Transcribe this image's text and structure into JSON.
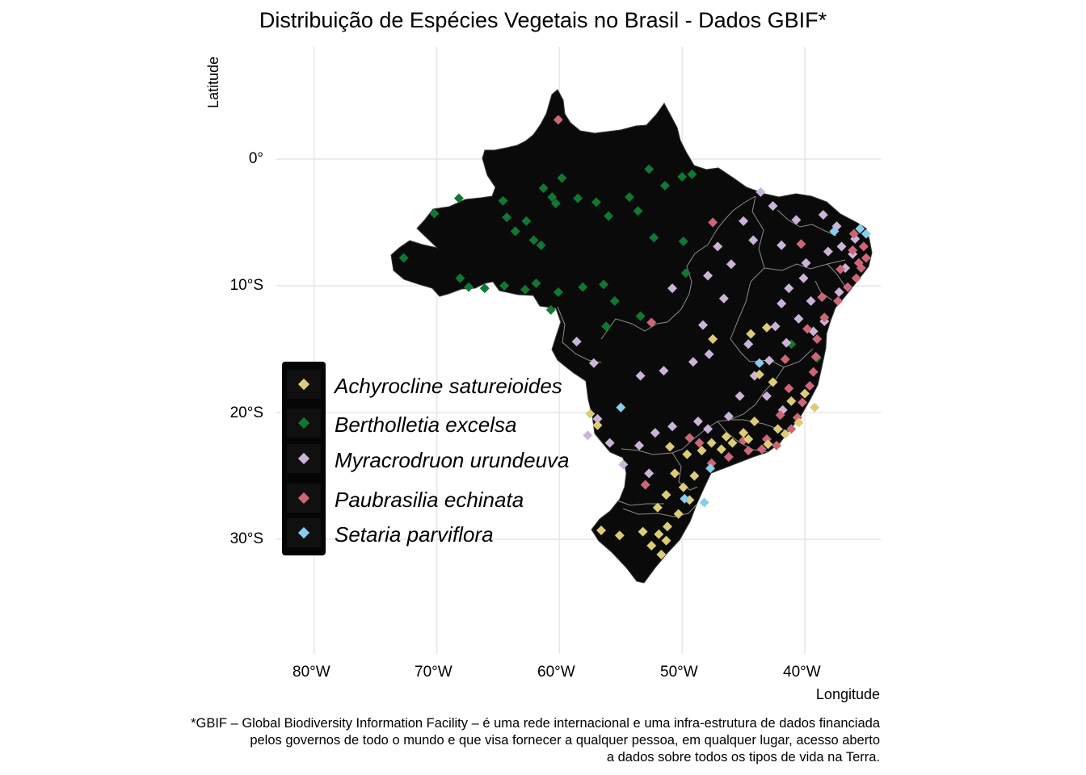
{
  "title": "Distribuição de Espécies Vegetais no Brasil - Dados GBIF*",
  "axes": {
    "x_label": "Longitude",
    "y_label": "Latitude",
    "lon_ticks": [
      "80°W",
      "70°W",
      "60°W",
      "50°W",
      "40°W"
    ],
    "lat_ticks": [
      "0°",
      "10°S",
      "20°S",
      "30°S"
    ],
    "lon_range": [
      -83,
      -33
    ],
    "lat_range": [
      -39,
      9
    ],
    "grid": true
  },
  "map": {
    "country_fill": "#0a0a0a",
    "state_border": "#8c8c8c"
  },
  "legend": {
    "placement": "left-center",
    "items": [
      {
        "label": "Achyrocline satureioides",
        "color": "#ddcc77"
      },
      {
        "label": "Bertholletia excelsa",
        "color": "#117733"
      },
      {
        "label": "Myracrodruon urundeuva",
        "color": "#cbb4d8"
      },
      {
        "label": "Paubrasilia echinata",
        "color": "#cc6677"
      },
      {
        "label": "Setaria parviflora",
        "color": "#88ccee"
      }
    ]
  },
  "caption": [
    "*GBIF – Global Biodiversity Information Facility – é uma rede internacional e uma infra-estrutura de dados financiada",
    "pelos governos de todo o mundo e que visa fornecer a qualquer pessoa, em qualquer lugar, acesso aberto",
    "a dados sobre todos os tipos de vida na Terra."
  ],
  "chart_data": {
    "type": "scatter",
    "title": "Distribuição de Espécies Vegetais no Brasil - Dados GBIF*",
    "xlabel": "Longitude",
    "ylabel": "Latitude",
    "xlim": [
      -83,
      -33
    ],
    "ylim": [
      -39,
      9
    ],
    "series": [
      {
        "name": "Bertholletia excelsa",
        "color": "#117733",
        "points": [
          [
            -70.2,
            -4.3
          ],
          [
            -68.2,
            -3.1
          ],
          [
            -72.7,
            -7.8
          ],
          [
            -68.1,
            -9.4
          ],
          [
            -67.4,
            -10.1
          ],
          [
            -66.1,
            -10.2
          ],
          [
            -64.5,
            -10.0
          ],
          [
            -62.8,
            -10.3
          ],
          [
            -61.9,
            -9.8
          ],
          [
            -60.1,
            -10.5
          ],
          [
            -58.1,
            -10.1
          ],
          [
            -56.4,
            -9.9
          ],
          [
            -55.5,
            -11.2
          ],
          [
            -64.6,
            -3.3
          ],
          [
            -64.3,
            -4.6
          ],
          [
            -63.6,
            -5.7
          ],
          [
            -62.1,
            -6.4
          ],
          [
            -61.5,
            -6.8
          ],
          [
            -62.7,
            -4.9
          ],
          [
            -61.3,
            -2.3
          ],
          [
            -60.6,
            -3.0
          ],
          [
            -60.3,
            -3.5
          ],
          [
            -59.8,
            -1.5
          ],
          [
            -58.5,
            -3.1
          ],
          [
            -57.0,
            -3.4
          ],
          [
            -56.0,
            -4.5
          ],
          [
            -54.3,
            -3.0
          ],
          [
            -53.6,
            -4.1
          ],
          [
            -52.7,
            -0.8
          ],
          [
            -50.0,
            -1.4
          ],
          [
            -49.2,
            -1.2
          ],
          [
            -51.4,
            -2.1
          ],
          [
            -52.3,
            -6.2
          ],
          [
            -49.9,
            -6.5
          ],
          [
            -49.7,
            -9.0
          ],
          [
            -53.4,
            -12.4
          ],
          [
            -60.7,
            -11.9
          ],
          [
            -56.2,
            -13.2
          ],
          [
            -39.0,
            -15.7
          ],
          [
            -41.1,
            -14.6
          ]
        ]
      },
      {
        "name": "Myracrodruon urundeuva",
        "color": "#cbb4d8",
        "points": [
          [
            -37.4,
            -5.3
          ],
          [
            -38.5,
            -4.4
          ],
          [
            -37.0,
            -6.9
          ],
          [
            -36.1,
            -7.5
          ],
          [
            -38.1,
            -7.3
          ],
          [
            -39.9,
            -8.2
          ],
          [
            -41.3,
            -10.2
          ],
          [
            -41.9,
            -11.4
          ],
          [
            -40.5,
            -12.6
          ],
          [
            -39.3,
            -13.6
          ],
          [
            -41.5,
            -14.5
          ],
          [
            -42.9,
            -15.9
          ],
          [
            -44.1,
            -17.1
          ],
          [
            -45.3,
            -18.7
          ],
          [
            -46.2,
            -20.3
          ],
          [
            -47.9,
            -21.3
          ],
          [
            -48.7,
            -20.7
          ],
          [
            -50.8,
            -21.1
          ],
          [
            -52.2,
            -21.6
          ],
          [
            -53.5,
            -22.6
          ],
          [
            -55.9,
            -22.4
          ],
          [
            -56.9,
            -20.5
          ],
          [
            -57.7,
            -21.8
          ],
          [
            -53.4,
            -17.1
          ],
          [
            -51.5,
            -16.7
          ],
          [
            -49.1,
            -16.0
          ],
          [
            -47.8,
            -15.4
          ],
          [
            -48.3,
            -13.1
          ],
          [
            -46.6,
            -11.0
          ],
          [
            -47.9,
            -9.2
          ],
          [
            -46.0,
            -8.3
          ],
          [
            -44.2,
            -6.4
          ],
          [
            -41.9,
            -6.8
          ],
          [
            -40.7,
            -4.8
          ],
          [
            -42.6,
            -3.7
          ],
          [
            -45.0,
            -4.9
          ],
          [
            -47.1,
            -6.9
          ],
          [
            -50.8,
            -10.2
          ],
          [
            -43.6,
            -2.6
          ],
          [
            -40.1,
            -9.4
          ],
          [
            -39.5,
            -11.2
          ],
          [
            -38.4,
            -12.8
          ],
          [
            -37.2,
            -10.5
          ],
          [
            -36.7,
            -8.6
          ],
          [
            -35.9,
            -6.3
          ],
          [
            -42.4,
            -13.2
          ],
          [
            -44.6,
            -14.6
          ],
          [
            -43.1,
            -18.7
          ],
          [
            -41.8,
            -19.8
          ],
          [
            -54.8,
            -24.1
          ],
          [
            -52.7,
            -24.8
          ],
          [
            -57.2,
            -16.1
          ],
          [
            -58.6,
            -14.4
          ]
        ]
      },
      {
        "name": "Paubrasilia echinata",
        "color": "#cc6677",
        "points": [
          [
            -35.2,
            -6.9
          ],
          [
            -35.0,
            -7.8
          ],
          [
            -35.4,
            -8.6
          ],
          [
            -35.8,
            -9.4
          ],
          [
            -36.5,
            -10.1
          ],
          [
            -37.3,
            -11.2
          ],
          [
            -38.4,
            -12.5
          ],
          [
            -39.0,
            -14.2
          ],
          [
            -39.1,
            -15.6
          ],
          [
            -39.3,
            -16.8
          ],
          [
            -39.6,
            -17.9
          ],
          [
            -40.2,
            -19.2
          ],
          [
            -40.6,
            -20.4
          ],
          [
            -41.1,
            -21.3
          ],
          [
            -42.3,
            -22.6
          ],
          [
            -43.5,
            -22.9
          ],
          [
            -44.6,
            -23.0
          ],
          [
            -46.2,
            -23.5
          ],
          [
            -47.6,
            -24.0
          ],
          [
            -48.6,
            -22.4
          ],
          [
            -49.4,
            -22.0
          ],
          [
            -45.0,
            -22.2
          ],
          [
            -43.1,
            -22.1
          ],
          [
            -42.0,
            -20.2
          ],
          [
            -41.3,
            -18.1
          ],
          [
            -41.6,
            -15.8
          ],
          [
            -39.8,
            -13.4
          ],
          [
            -37.1,
            -8.7
          ],
          [
            -36.0,
            -5.9
          ],
          [
            -38.6,
            -10.9
          ],
          [
            -47.5,
            -5.0
          ],
          [
            -52.5,
            -12.9
          ],
          [
            -53.0,
            -25.7
          ],
          [
            -60.1,
            3.1
          ],
          [
            -40.3,
            -6.7
          ],
          [
            -36.1,
            -7.2
          ],
          [
            -35.6,
            -8.2
          ]
        ]
      },
      {
        "name": "Achyrocline satureioides",
        "color": "#ddcc77",
        "points": [
          [
            -43.1,
            -13.3
          ],
          [
            -44.4,
            -13.8
          ],
          [
            -47.5,
            -14.2
          ],
          [
            -43.7,
            -17.0
          ],
          [
            -42.6,
            -17.6
          ],
          [
            -40.0,
            -18.5
          ],
          [
            -39.2,
            -19.6
          ],
          [
            -40.5,
            -20.8
          ],
          [
            -41.6,
            -21.7
          ],
          [
            -43.0,
            -22.5
          ],
          [
            -44.6,
            -22.1
          ],
          [
            -45.9,
            -22.4
          ],
          [
            -46.8,
            -22.9
          ],
          [
            -48.4,
            -23.0
          ],
          [
            -49.6,
            -23.3
          ],
          [
            -51.0,
            -22.7
          ],
          [
            -49.0,
            -25.0
          ],
          [
            -49.9,
            -25.9
          ],
          [
            -51.3,
            -26.5
          ],
          [
            -49.4,
            -26.9
          ],
          [
            -50.3,
            -28.0
          ],
          [
            -51.2,
            -29.0
          ],
          [
            -51.9,
            -29.6
          ],
          [
            -51.3,
            -30.1
          ],
          [
            -52.5,
            -30.5
          ],
          [
            -51.7,
            -31.2
          ],
          [
            -53.2,
            -29.4
          ],
          [
            -55.1,
            -29.7
          ],
          [
            -56.6,
            -29.3
          ],
          [
            -57.5,
            -20.1
          ],
          [
            -56.9,
            -21.0
          ],
          [
            -52.0,
            -27.5
          ],
          [
            -50.6,
            -24.8
          ],
          [
            -42.2,
            -21.3
          ],
          [
            -44.1,
            -20.7
          ],
          [
            -45.0,
            -21.6
          ],
          [
            -46.4,
            -21.9
          ],
          [
            -47.6,
            -22.4
          ],
          [
            -41.1,
            -19.1
          ]
        ]
      },
      {
        "name": "Setaria parviflora",
        "color": "#88ccee",
        "points": [
          [
            -35.0,
            -5.9
          ],
          [
            -35.5,
            -5.5
          ],
          [
            -37.6,
            -5.7
          ],
          [
            -43.7,
            -16.1
          ],
          [
            -55.0,
            -19.6
          ],
          [
            -48.2,
            -27.1
          ],
          [
            -49.8,
            -26.8
          ],
          [
            -47.7,
            -24.4
          ]
        ]
      }
    ]
  }
}
